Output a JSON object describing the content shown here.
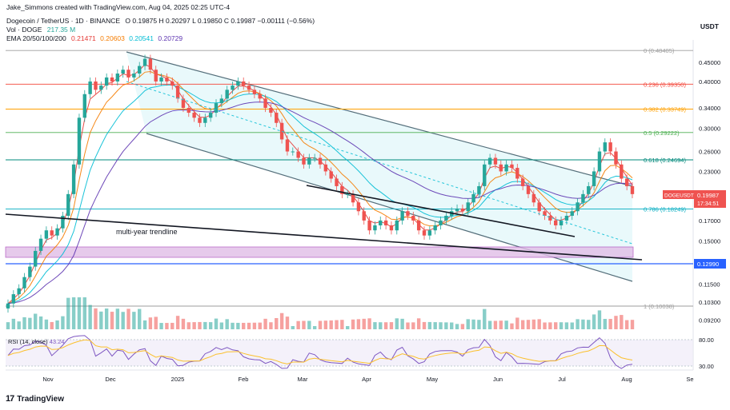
{
  "header": {
    "credit": "Jake_Simmons created with TradingView.com, Aug 04, 2025 02:25 UTC-4",
    "symbol": "Dogecoin / TetherUS · 1D · BINANCE",
    "ohlc": "O 0.19875  H 0.20297  L 0.19850  C 0.19987  −0.00111 (−0.56%)",
    "vol_label": "Vol · DOGE",
    "vol_value": "217.35 M",
    "ema_label": "EMA 20/50/100/200",
    "ema20": "0.21471",
    "ema50": "0.20603",
    "ema100": "0.20541",
    "ema200": "0.20729"
  },
  "currency": "USDT",
  "logo_text": "TradingView",
  "colors": {
    "up": "#26a69a",
    "down": "#ef5350",
    "ema20": "#e53935",
    "ema50": "#f57c00",
    "ema100": "#00bcd4",
    "ema200": "#5e35b1",
    "channel_fill": "#e0f7fa",
    "support_band": "#e1bee7",
    "blue_line": "#2962ff",
    "rsi_line": "#7e57c2",
    "rsi_ma": "#fbc02d"
  },
  "chart_data": {
    "type": "candlestick",
    "log_scale": true,
    "x_ticks": [
      "Nov",
      "Dec",
      "2025",
      "Feb",
      "Mar",
      "Apr",
      "May",
      "Jun",
      "Jul",
      "Aug",
      "Se"
    ],
    "y_ticks": [
      "0.45000",
      "0.40000",
      "0.34000",
      "0.30000",
      "0.26000",
      "0.23000",
      "0.20000",
      "0.17000",
      "0.15000",
      "0.13000",
      "0.11500",
      "0.10300",
      "0.09200"
    ],
    "fib_levels": [
      {
        "label": "0 (0.48405)",
        "value": 0.48405,
        "color": "#9e9e9e"
      },
      {
        "label": "0.236 (0.39350)",
        "value": 0.3935,
        "color": "#f44336"
      },
      {
        "label": "0.382 (0.33749)",
        "value": 0.33749,
        "color": "#ffa000"
      },
      {
        "label": "0.5 (0.29222)",
        "value": 0.29222,
        "color": "#4caf50"
      },
      {
        "label": "0.618 (0.24694)",
        "value": 0.24694,
        "color": "#00897b"
      },
      {
        "label": "0.786 (0.18249)",
        "value": 0.18249,
        "color": "#00acc1"
      },
      {
        "label": "1 (0.10038)",
        "value": 0.10038,
        "color": "#9e9e9e"
      }
    ],
    "current_price": {
      "symbol": "DOGEUSDT",
      "value": "0.19987",
      "countdown": "17:34:51"
    },
    "support_level": {
      "value": "0.12990"
    },
    "annotation": "multi-year trendline",
    "rsi": {
      "label": "RSI (14, close)",
      "value": "43.24",
      "levels": [
        "80.00",
        "30.00"
      ]
    },
    "price_series": [
      0.102,
      0.108,
      0.112,
      0.12,
      0.128,
      0.141,
      0.152,
      0.16,
      0.155,
      0.162,
      0.175,
      0.2,
      0.24,
      0.32,
      0.37,
      0.4,
      0.38,
      0.39,
      0.41,
      0.4,
      0.42,
      0.43,
      0.41,
      0.42,
      0.44,
      0.46,
      0.43,
      0.4,
      0.41,
      0.4,
      0.39,
      0.36,
      0.34,
      0.33,
      0.32,
      0.31,
      0.32,
      0.33,
      0.35,
      0.36,
      0.38,
      0.39,
      0.4,
      0.39,
      0.38,
      0.37,
      0.36,
      0.34,
      0.33,
      0.31,
      0.28,
      0.26,
      0.26,
      0.25,
      0.24,
      0.25,
      0.25,
      0.24,
      0.23,
      0.22,
      0.21,
      0.2,
      0.2,
      0.19,
      0.18,
      0.17,
      0.16,
      0.165,
      0.17,
      0.165,
      0.16,
      0.17,
      0.18,
      0.175,
      0.17,
      0.16,
      0.155,
      0.16,
      0.165,
      0.17,
      0.175,
      0.18,
      0.183,
      0.18,
      0.19,
      0.2,
      0.21,
      0.24,
      0.25,
      0.24,
      0.23,
      0.24,
      0.235,
      0.22,
      0.21,
      0.2,
      0.19,
      0.18,
      0.175,
      0.17,
      0.165,
      0.17,
      0.175,
      0.18,
      0.19,
      0.2,
      0.21,
      0.23,
      0.26,
      0.275,
      0.26,
      0.24,
      0.22,
      0.21,
      0.2
    ]
  }
}
